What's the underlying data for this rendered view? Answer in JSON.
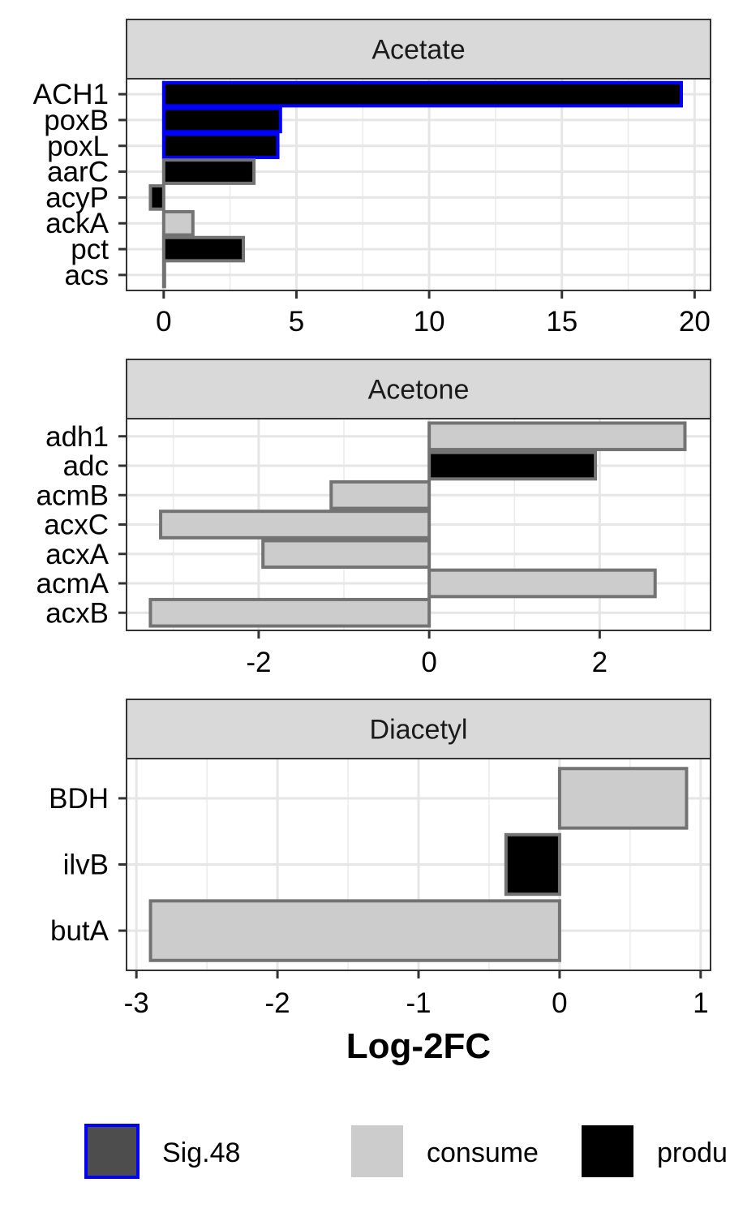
{
  "chart_data": {
    "type": "bar",
    "orientation": "horizontal",
    "xlabel": "Log-2FC",
    "legend_position": "bottom",
    "legend": [
      {
        "key": "sig48",
        "label": "Sig.48",
        "fill": "#4d4d4d",
        "stroke": "#0000ff"
      },
      {
        "key": "consume",
        "label": "consume",
        "fill": "#cccccc",
        "stroke": "#cccccc"
      },
      {
        "key": "produce",
        "label": "produ",
        "fill": "#000000",
        "stroke": "#000000"
      }
    ],
    "panels": [
      {
        "title": "Acetate",
        "xlim": [
          -1.4,
          20.6
        ],
        "xticks": [
          0,
          5,
          10,
          15,
          20
        ],
        "xtick_labels": [
          "0",
          "5",
          "10",
          "15",
          "20"
        ],
        "minor_ticks": [
          2.5,
          7.5,
          12.5,
          17.5
        ],
        "bars": [
          {
            "label": "ACH1",
            "value": 19.5,
            "fill": "produce",
            "sig": true
          },
          {
            "label": "poxB",
            "value": 4.4,
            "fill": "produce",
            "sig": true
          },
          {
            "label": "poxL",
            "value": 4.3,
            "fill": "produce",
            "sig": true
          },
          {
            "label": "aarC",
            "value": 3.4,
            "fill": "produce",
            "sig": false
          },
          {
            "label": "acyP",
            "value": -0.5,
            "fill": "produce",
            "sig": false
          },
          {
            "label": "ackA",
            "value": 1.1,
            "fill": "consume",
            "sig": false
          },
          {
            "label": "pct",
            "value": 3.0,
            "fill": "produce",
            "sig": false
          },
          {
            "label": "acs",
            "value": 0.03,
            "fill": "produce",
            "sig": false
          }
        ]
      },
      {
        "title": "Acetone",
        "xlim": [
          -3.55,
          3.3
        ],
        "xticks": [
          -2,
          0,
          2
        ],
        "xtick_labels": [
          "-2",
          "0",
          "2"
        ],
        "minor_ticks": [
          -3,
          -1,
          1,
          3
        ],
        "bars": [
          {
            "label": "adh1",
            "value": 3.0,
            "fill": "consume",
            "sig": false
          },
          {
            "label": "adc",
            "value": 1.95,
            "fill": "produce",
            "sig": false
          },
          {
            "label": "acmB",
            "value": -1.15,
            "fill": "consume",
            "sig": false
          },
          {
            "label": "acxC",
            "value": -3.15,
            "fill": "consume",
            "sig": false
          },
          {
            "label": "acxA",
            "value": -1.95,
            "fill": "consume",
            "sig": false
          },
          {
            "label": "acmA",
            "value": 2.65,
            "fill": "consume",
            "sig": false
          },
          {
            "label": "acxB",
            "value": -3.27,
            "fill": "consume",
            "sig": false
          }
        ]
      },
      {
        "title": "Diacetyl",
        "xlim": [
          -3.07,
          1.07
        ],
        "xticks": [
          -3,
          -2,
          -1,
          0,
          1
        ],
        "xtick_labels": [
          "-3",
          "-2",
          "-1",
          "0",
          "1"
        ],
        "minor_ticks": [
          -2.5,
          -1.5,
          -0.5,
          0.5
        ],
        "bars": [
          {
            "label": "BDH",
            "value": 0.9,
            "fill": "consume",
            "sig": false
          },
          {
            "label": "ilvB",
            "value": -0.38,
            "fill": "produce",
            "sig": false
          },
          {
            "label": "butA",
            "value": -2.9,
            "fill": "consume",
            "sig": false
          }
        ]
      }
    ]
  }
}
